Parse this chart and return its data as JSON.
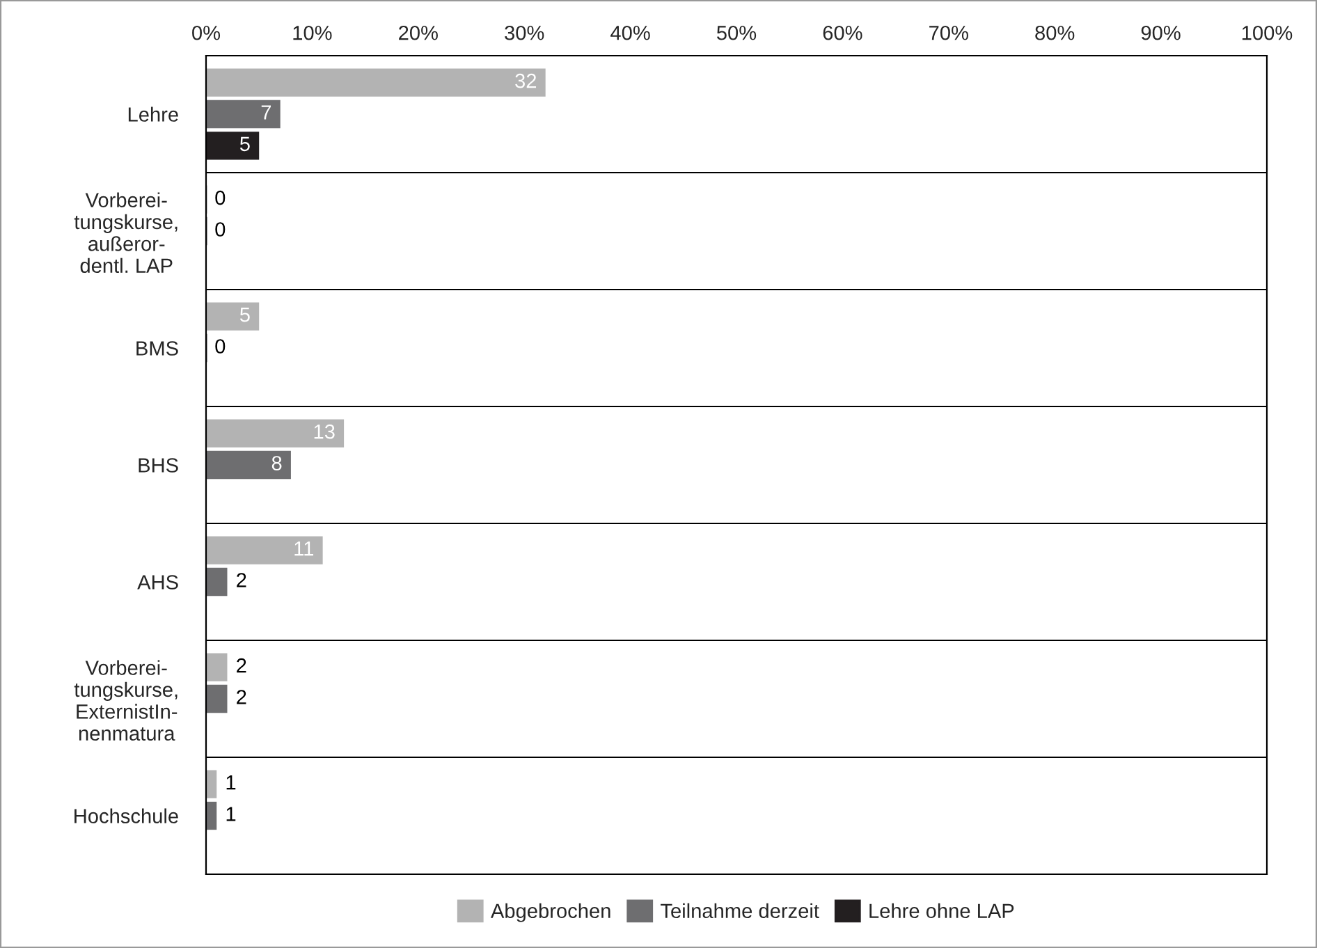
{
  "chart_data": {
    "type": "bar",
    "orientation": "horizontal",
    "categories": [
      "Lehre",
      "Vorberei-\ntungskurse,\naußeror-\ndentl. LAP",
      "BMS",
      "BHS",
      "AHS",
      "Vorberei-\ntungskurse,\nExternistIn-\nnenmatura",
      "Hochschule"
    ],
    "series": [
      {
        "name": "Abgebrochen",
        "color": "#b3b3b3",
        "values": [
          32,
          0,
          5,
          13,
          11,
          2,
          1
        ]
      },
      {
        "name": "Teilnahme derzeit",
        "color": "#6e6e70",
        "values": [
          7,
          0,
          0,
          8,
          2,
          2,
          1
        ]
      },
      {
        "name": "Lehre ohne LAP",
        "color": "#231f20",
        "values": [
          5,
          null,
          null,
          null,
          null,
          null,
          null
        ]
      }
    ],
    "xlim": [
      0,
      100
    ],
    "xticks": [
      {
        "value": 0,
        "label": "0%"
      },
      {
        "value": 10,
        "label": "10%"
      },
      {
        "value": 20,
        "label": "20%"
      },
      {
        "value": 30,
        "label": "30%"
      },
      {
        "value": 40,
        "label": "40%"
      },
      {
        "value": 50,
        "label": "50%"
      },
      {
        "value": 60,
        "label": "60%"
      },
      {
        "value": 70,
        "label": "70%"
      },
      {
        "value": 80,
        "label": "80%"
      },
      {
        "value": 90,
        "label": "90%"
      },
      {
        "value": 100,
        "label": "100%"
      }
    ],
    "data_labels": true,
    "grid": "y",
    "legend": "bottom"
  }
}
